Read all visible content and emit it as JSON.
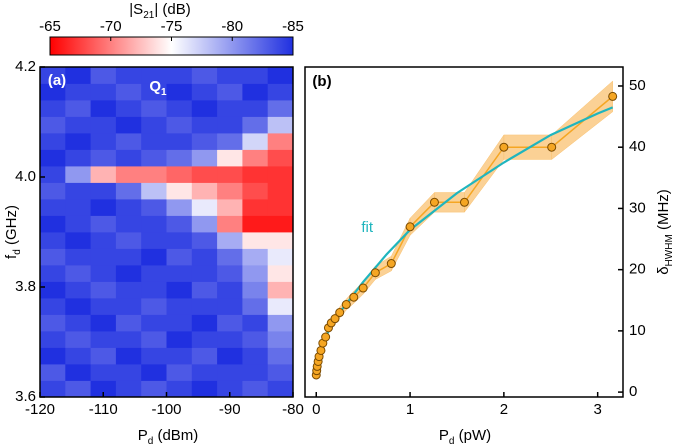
{
  "chart_data": [
    {
      "type": "heatmap",
      "panel": "(a)",
      "annotation": {
        "pre": "Q",
        "sub": "1"
      },
      "xlabel": {
        "pre": "P",
        "sub": "d",
        "post": " (dBm)"
      },
      "ylabel": {
        "pre": "f",
        "sub": "d",
        "post": " (GHz)"
      },
      "xlim": [
        -120,
        -80
      ],
      "xticks": [
        -120,
        -110,
        -100,
        -90,
        -80
      ],
      "ylim": [
        3.6,
        4.2
      ],
      "yticks": [
        3.6,
        3.8,
        {
          "value": 4,
          "label": "4.0"
        },
        4.2
      ],
      "x": [
        -120,
        -116,
        -112,
        -108,
        -104,
        -100,
        -96,
        -92,
        -88,
        -84,
        -80
      ],
      "y": [
        3.6,
        3.63,
        3.66,
        3.69,
        3.72,
        3.75,
        3.78,
        3.81,
        3.84,
        3.87,
        3.9,
        3.93,
        3.96,
        3.99,
        4.02,
        4.05,
        4.08,
        4.11,
        4.14,
        4.17,
        4.2
      ],
      "z": [
        [
          -84,
          -83,
          -85,
          -84,
          -83,
          -84,
          -85,
          -84,
          -83,
          -84
        ],
        [
          -83,
          -85,
          -84,
          -84,
          -85,
          -83,
          -84,
          -84,
          -84,
          -83
        ],
        [
          -85,
          -84,
          -83,
          -85,
          -84,
          -84,
          -83,
          -85,
          -84,
          -82
        ],
        [
          -84,
          -83,
          -84,
          -84,
          -83,
          -85,
          -84,
          -84,
          -83,
          -81
        ],
        [
          -83,
          -84,
          -85,
          -83,
          -84,
          -84,
          -85,
          -83,
          -84,
          -80
        ],
        [
          -84,
          -85,
          -84,
          -84,
          -83,
          -84,
          -84,
          -84,
          -82,
          -76
        ],
        [
          -85,
          -84,
          -83,
          -84,
          -84,
          -85,
          -83,
          -84,
          -81,
          -72
        ],
        [
          -84,
          -83,
          -84,
          -85,
          -84,
          -84,
          -84,
          -83,
          -80,
          -74
        ],
        [
          -83,
          -84,
          -84,
          -84,
          -85,
          -83,
          -84,
          -82,
          -79,
          -76
        ],
        [
          -84,
          -85,
          -84,
          -83,
          -84,
          -84,
          -83,
          -79,
          -74,
          -74
        ],
        [
          -85,
          -84,
          -83,
          -84,
          -84,
          -83,
          -80,
          -70,
          -66,
          -66
        ],
        [
          -84,
          -84,
          -85,
          -84,
          -83,
          -80,
          -76,
          -72,
          -67,
          -67
        ],
        [
          -83,
          -84,
          -84,
          -82,
          -78,
          -74,
          -72,
          -70,
          -68,
          -67
        ],
        [
          -84,
          -80,
          -72,
          -70,
          -70,
          -69,
          -68,
          -68,
          -67,
          -67
        ],
        [
          -85,
          -84,
          -83,
          -84,
          -83,
          -82,
          -80,
          -74,
          -70,
          -68
        ],
        [
          -84,
          -85,
          -84,
          -83,
          -84,
          -84,
          -83,
          -82,
          -77,
          -70
        ],
        [
          -83,
          -84,
          -84,
          -85,
          -84,
          -83,
          -84,
          -84,
          -82,
          -78
        ],
        [
          -84,
          -83,
          -85,
          -84,
          -83,
          -84,
          -85,
          -84,
          -84,
          -82
        ],
        [
          -85,
          -84,
          -84,
          -83,
          -84,
          -85,
          -84,
          -83,
          -85,
          -84
        ],
        [
          -84,
          -85,
          -83,
          -84,
          -84,
          -84,
          -83,
          -84,
          -84,
          -85
        ]
      ],
      "colorbar": {
        "label": {
          "pre": "|S",
          "sub": "21",
          "post": "| (dB)"
        },
        "clim": [
          -65,
          -85
        ],
        "ticks": [
          -65,
          -70,
          -75,
          -80,
          -85
        ],
        "colors": [
          "#ff0000",
          "#ffffff",
          "#2030e0"
        ]
      }
    },
    {
      "type": "scatter",
      "panel": "(b)",
      "yaxis": "right",
      "xlabel": {
        "pre": "P",
        "sub": "d",
        "post": " (pW)"
      },
      "ylabel": {
        "pre": "δ",
        "sub": "HWHM",
        "post": " (MHz)"
      },
      "xlim": [
        -0.12,
        3.27
      ],
      "xticks": [
        0,
        1,
        2,
        3
      ],
      "ylim": [
        -0.8,
        53.1
      ],
      "yticks": [
        0,
        10,
        20,
        30,
        40,
        50
      ],
      "series": [
        {
          "color": "#f5a623",
          "band_color": "#f9c271",
          "x": [
            0,
            0.005,
            0.01,
            0.02,
            0.03,
            0.05,
            0.07,
            0.1,
            0.13,
            0.16,
            0.2,
            0.25,
            0.32,
            0.4,
            0.5,
            0.63,
            0.8,
            1.0,
            1.26,
            1.58,
            2.0,
            2.51,
            3.16
          ],
          "values": [
            2.8,
            3.5,
            4.2,
            5.0,
            5.8,
            6.8,
            8.0,
            9.0,
            10.5,
            11.3,
            12.0,
            13.0,
            14.3,
            15.5,
            17.0,
            19.5,
            21.0,
            27.0,
            31.0,
            31.0,
            40.0,
            40.0,
            48.3
          ],
          "errors": [
            0.5,
            0.5,
            0.5,
            0.6,
            0.6,
            0.6,
            0.7,
            0.7,
            0.8,
            0.8,
            0.8,
            0.9,
            0.9,
            1.0,
            1.0,
            1.1,
            1.2,
            1.4,
            1.6,
            1.6,
            2.0,
            2.0,
            2.5
          ]
        },
        {
          "name": "fit",
          "color": "#1fb5be",
          "x": [
            0,
            0.05,
            0.1,
            0.2,
            0.3,
            0.5,
            0.75,
            1,
            1.25,
            1.5,
            2,
            2.5,
            3,
            3.16
          ],
          "values": [
            3,
            7,
            9,
            12,
            14,
            18,
            22.5,
            26.5,
            29.5,
            32.5,
            37.5,
            42,
            45.5,
            46.5
          ]
        }
      ]
    }
  ]
}
